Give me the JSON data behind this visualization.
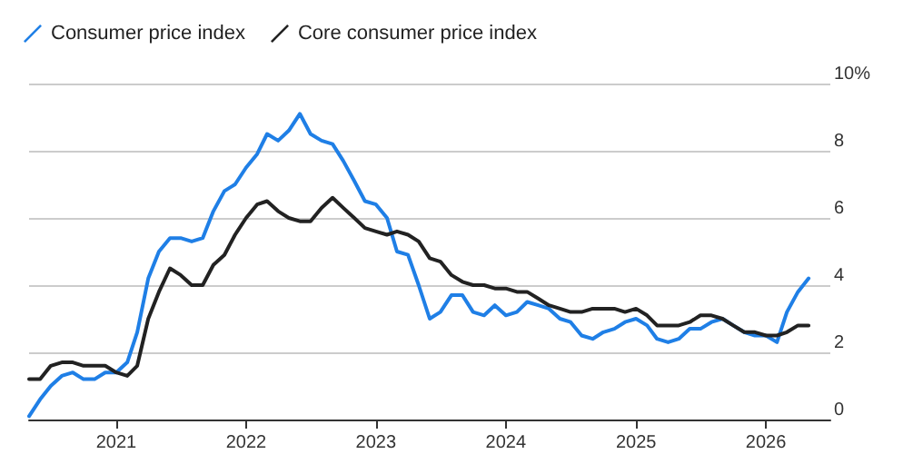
{
  "chart_data": {
    "type": "line",
    "x": [
      "2020-05",
      "2020-06",
      "2020-07",
      "2020-08",
      "2020-09",
      "2020-10",
      "2020-11",
      "2020-12",
      "2021-01",
      "2021-02",
      "2021-03",
      "2021-04",
      "2021-05",
      "2021-06",
      "2021-07",
      "2021-08",
      "2021-09",
      "2021-10",
      "2021-11",
      "2021-12",
      "2022-01",
      "2022-02",
      "2022-03",
      "2022-04",
      "2022-05",
      "2022-06",
      "2022-07",
      "2022-08",
      "2022-09",
      "2022-10",
      "2022-11",
      "2022-12",
      "2023-01",
      "2023-02",
      "2023-03",
      "2023-04",
      "2023-05",
      "2023-06",
      "2023-07",
      "2023-08",
      "2023-09",
      "2023-10",
      "2023-11",
      "2023-12",
      "2024-01",
      "2024-02",
      "2024-03",
      "2024-04",
      "2024-05",
      "2024-06",
      "2024-07",
      "2024-08",
      "2024-09",
      "2024-10",
      "2024-11",
      "2024-12",
      "2025-01",
      "2025-02",
      "2025-03",
      "2025-04",
      "2025-05",
      "2025-06",
      "2025-07",
      "2025-08",
      "2025-09",
      "2025-10",
      "2025-11",
      "2025-12",
      "2026-01",
      "2026-02",
      "2026-03",
      "2026-04",
      "2026-05"
    ],
    "series": [
      {
        "name": "Consumer price index",
        "color": "#1f7fe6",
        "values": [
          0.1,
          0.6,
          1.0,
          1.3,
          1.4,
          1.2,
          1.2,
          1.4,
          1.4,
          1.7,
          2.6,
          4.2,
          5.0,
          5.4,
          5.4,
          5.3,
          5.4,
          6.2,
          6.8,
          7.0,
          7.5,
          7.9,
          8.5,
          8.3,
          8.6,
          9.1,
          8.5,
          8.3,
          8.2,
          7.7,
          7.1,
          6.5,
          6.4,
          6.0,
          5.0,
          4.9,
          4.0,
          3.0,
          3.2,
          3.7,
          3.7,
          3.2,
          3.1,
          3.4,
          3.1,
          3.2,
          3.5,
          3.4,
          3.3,
          3.0,
          2.9,
          2.5,
          2.4,
          2.6,
          2.7,
          2.9,
          3.0,
          2.8,
          2.4,
          2.3,
          2.4,
          2.7,
          2.7,
          2.9,
          3.0,
          2.8,
          2.6,
          2.5,
          2.5,
          2.3,
          3.2,
          3.8,
          4.2
        ]
      },
      {
        "name": "Core consumer price index",
        "color": "#222222",
        "values": [
          1.2,
          1.2,
          1.6,
          1.7,
          1.7,
          1.6,
          1.6,
          1.6,
          1.4,
          1.3,
          1.6,
          3.0,
          3.8,
          4.5,
          4.3,
          4.0,
          4.0,
          4.6,
          4.9,
          5.5,
          6.0,
          6.4,
          6.5,
          6.2,
          6.0,
          5.9,
          5.9,
          6.3,
          6.6,
          6.3,
          6.0,
          5.7,
          5.6,
          5.5,
          5.6,
          5.5,
          5.3,
          4.8,
          4.7,
          4.3,
          4.1,
          4.0,
          4.0,
          3.9,
          3.9,
          3.8,
          3.8,
          3.6,
          3.4,
          3.3,
          3.2,
          3.2,
          3.3,
          3.3,
          3.3,
          3.2,
          3.3,
          3.1,
          2.8,
          2.8,
          2.8,
          2.9,
          3.1,
          3.1,
          3.0,
          2.8,
          2.6,
          2.6,
          2.5,
          2.5,
          2.6,
          2.8,
          2.8
        ]
      }
    ],
    "xlim": [
      "2020-05",
      "2026-07"
    ],
    "xticks": [
      "2021",
      "2022",
      "2023",
      "2024",
      "2025",
      "2026"
    ],
    "ylim": [
      0,
      10
    ],
    "yticks": [
      0,
      2,
      4,
      6,
      8,
      {
        "value": 10,
        "label": "10%"
      }
    ],
    "grid": "y",
    "legend": "top left",
    "marker": "none",
    "line_style": "solid"
  }
}
